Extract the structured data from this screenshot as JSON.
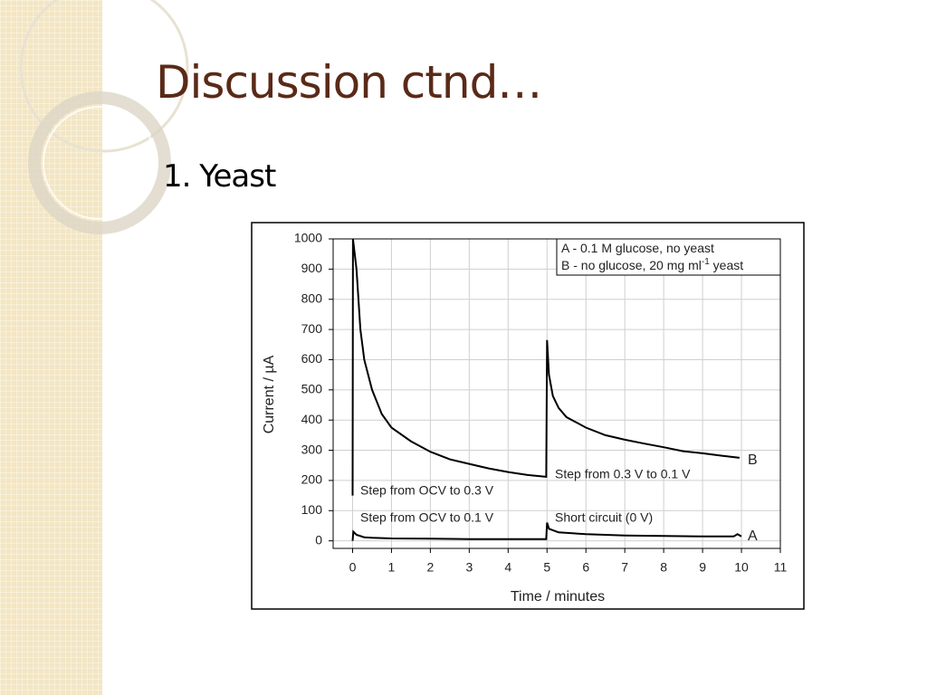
{
  "title": "Discussion ctnd…",
  "subtitle": "1. Yeast",
  "chart_data": {
    "type": "line",
    "x_label": "Time / minutes",
    "y_label": "Current / µA",
    "xlim": [
      -0.5,
      11
    ],
    "xticks": [
      0,
      1,
      2,
      3,
      4,
      5,
      6,
      7,
      8,
      9,
      10,
      11
    ],
    "ylim": [
      -25,
      1000
    ],
    "yticks": [
      0,
      100,
      200,
      300,
      400,
      500,
      600,
      700,
      800,
      900,
      1000
    ],
    "grid": true,
    "legend": [
      [
        "A - 0.1 M glucose, no yeast"
      ],
      [
        "B - no glucose, 20 mg ml",
        "-1",
        " yeast"
      ]
    ],
    "annotations": [
      "Step from OCV to 0.3 V",
      "Step from 0.3 V to 0.1 V",
      "Step from OCV to 0.1 V",
      "Short circuit (0 V)"
    ],
    "series": [
      {
        "name": "B",
        "color": "#000000",
        "x": [
          0,
          0.01,
          0.1,
          0.2,
          0.3,
          0.5,
          0.75,
          1,
          1.5,
          2,
          2.5,
          3,
          3.5,
          4,
          4.5,
          4.98,
          5.0,
          5.05,
          5.15,
          5.3,
          5.5,
          6,
          6.5,
          7,
          7.5,
          8,
          8.5,
          9,
          9.5,
          9.95
        ],
        "values": [
          150,
          1000,
          900,
          700,
          600,
          500,
          420,
          375,
          330,
          295,
          270,
          255,
          240,
          228,
          218,
          212,
          665,
          550,
          480,
          440,
          410,
          375,
          350,
          335,
          322,
          310,
          297,
          290,
          282,
          275
        ]
      },
      {
        "name": "A",
        "color": "#000000",
        "x": [
          0,
          0.02,
          0.1,
          0.3,
          0.5,
          1,
          2,
          3,
          4,
          4.98,
          5.0,
          5.05,
          5.3,
          6,
          7,
          8,
          9,
          9.8,
          9.9,
          10
        ],
        "values": [
          0,
          30,
          20,
          12,
          10,
          8,
          7,
          6,
          6,
          6,
          60,
          40,
          28,
          22,
          18,
          16,
          15,
          15,
          22,
          15
        ]
      }
    ]
  }
}
